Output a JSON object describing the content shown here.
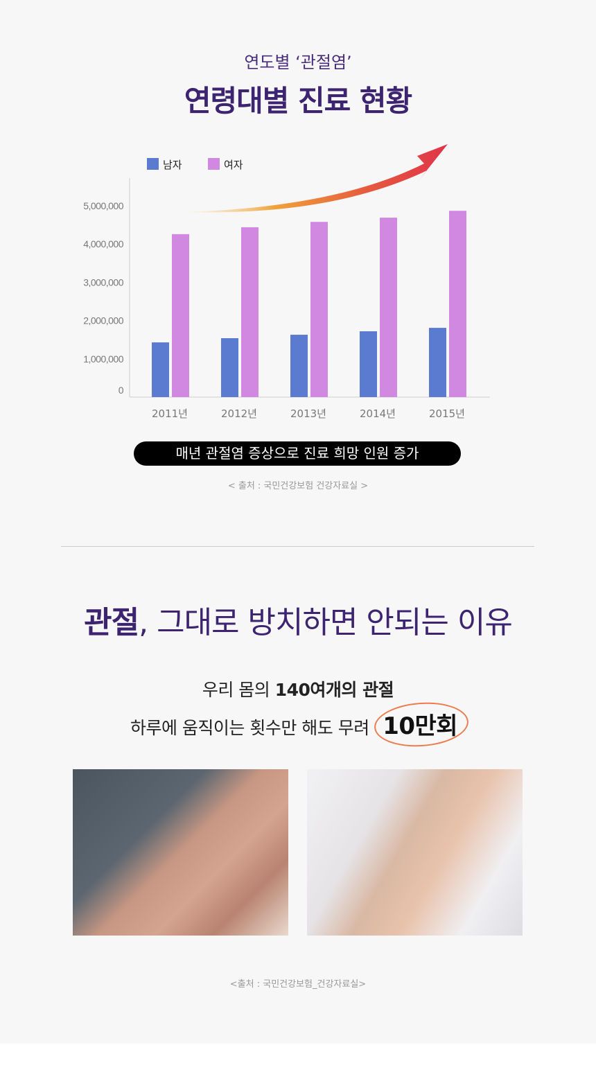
{
  "section1": {
    "subtitle": "연도별 ‘관절염’",
    "title": "연령대별 진료 현황",
    "banner": "매년 관절염 증상으로 진료 희망 인원 증가",
    "source": "< 출처 : 국민건강보험 건강자료실 >"
  },
  "chart_data": {
    "type": "bar",
    "categories": [
      "2011년",
      "2012년",
      "2013년",
      "2014년",
      "2015년"
    ],
    "series": [
      {
        "name": "남자",
        "color": "#5a7bcf",
        "values": [
          1430000,
          1540000,
          1630000,
          1720000,
          1810000
        ]
      },
      {
        "name": "여자",
        "color": "#d088e0",
        "values": [
          4260000,
          4440000,
          4580000,
          4690000,
          4870000
        ]
      }
    ],
    "yticks": [
      "0",
      "1,000,000",
      "2,000,000",
      "3,000,000",
      "4,000,000",
      "5,000,000"
    ],
    "ylim": [
      0,
      5000000
    ],
    "legend": "top-left",
    "grid": false,
    "annotation": "rising-trend-arrow"
  },
  "section2": {
    "heading_bold": "관절",
    "heading_rest": ", 그대로 방치하면 안되는 이유",
    "line1_normal": "우리 몸의 ",
    "line1_bold": "140여개의 관절",
    "line2_normal": "하루에 움직이는 횟수만 해도 무려 ",
    "line2_highlight": "10만회",
    "source": "<출처 : 국민건강보험_건강자료실>",
    "photos": [
      "knee-pain-photo",
      "elbow-pain-photo"
    ]
  }
}
